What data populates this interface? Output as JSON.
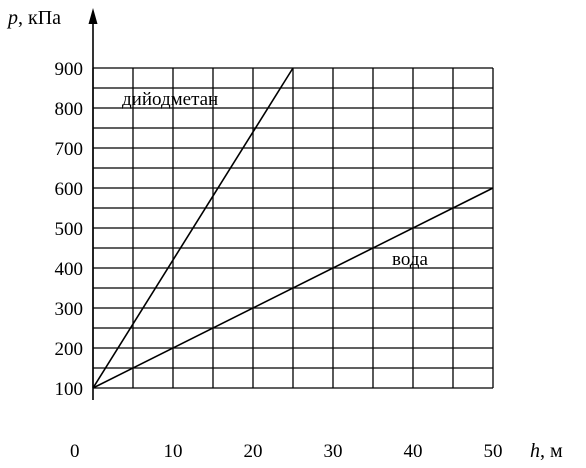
{
  "chart_data": {
    "type": "line",
    "x_axis": {
      "variable": "h",
      "unit": ", м",
      "ticks": [
        0,
        10,
        20,
        30,
        40,
        50
      ],
      "range": [
        0,
        50
      ],
      "grid_step": 5
    },
    "y_axis": {
      "variable": "p",
      "unit": ", кПа",
      "ticks": [
        100,
        200,
        300,
        400,
        500,
        600,
        700,
        800,
        900
      ],
      "range": [
        100,
        900
      ],
      "grid_step": 50
    },
    "grid": true,
    "series": [
      {
        "name": "дийодметан",
        "x": [
          0,
          25
        ],
        "y": [
          100,
          900
        ]
      },
      {
        "name": "вода",
        "x": [
          0,
          50
        ],
        "y": [
          100,
          600
        ]
      }
    ],
    "origin_label": "0"
  }
}
